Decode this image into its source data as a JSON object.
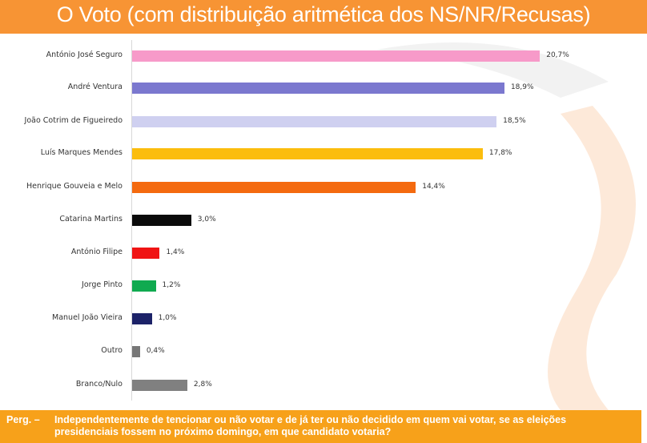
{
  "header": {
    "title": "O Voto (com distribuição aritmética dos NS/NR/Recusas)"
  },
  "chart_data": {
    "type": "bar",
    "orientation": "horizontal",
    "title": "O Voto (com distribuição aritmética dos NS/NR/Recusas)",
    "categories": [
      "António José Seguro",
      "André Ventura",
      "João Cotrim de Figueiredo",
      "Luís Marques Mendes",
      "Henrique Gouveia e Melo",
      "Catarina Martins",
      "António Filipe",
      "Jorge Pinto",
      "Manuel João Vieira",
      "Outro",
      "Branco/Nulo"
    ],
    "values": [
      20.7,
      18.9,
      18.5,
      17.8,
      14.4,
      3.0,
      1.4,
      1.2,
      1.0,
      0.4,
      2.8
    ],
    "value_labels": [
      "20,7%",
      "18,9%",
      "18,5%",
      "17,8%",
      "14,4%",
      "3,0%",
      "1,4%",
      "1,2%",
      "1,0%",
      "0,4%",
      "2,8%"
    ],
    "colors": [
      "#f79ac9",
      "#7b78cf",
      "#cfd0f0",
      "#fbbd0d",
      "#f46a0f",
      "#0a0a0a",
      "#f01414",
      "#10aa50",
      "#1c2268",
      "#777777",
      "#808080"
    ],
    "xlabel": "",
    "ylabel": "",
    "grid": false,
    "legend": "none"
  },
  "footer": {
    "prefix": "Perg. –",
    "question": "Independentemente de tencionar ou não votar e de já ter ou não decidido em quem vai votar, se as eleições presidenciais fossem no próximo domingo, em que candidato votaria?"
  }
}
